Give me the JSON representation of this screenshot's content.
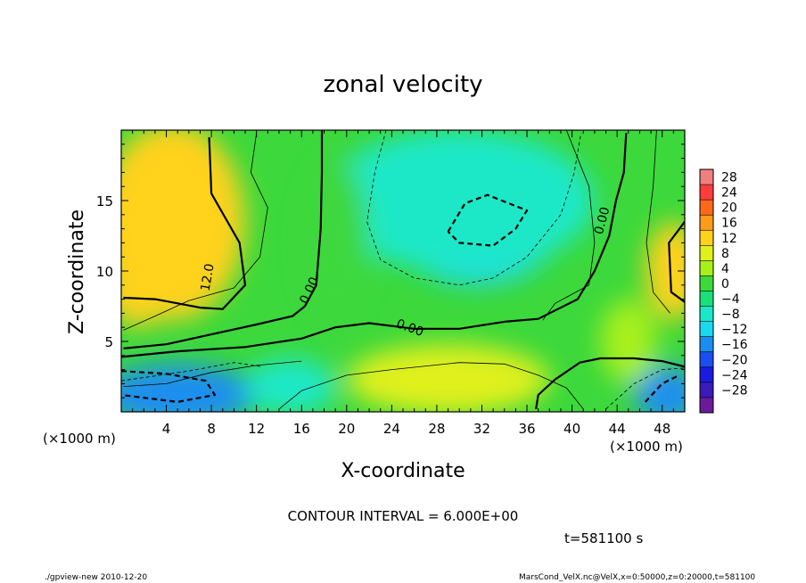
{
  "chart_data": {
    "type": "heatmap",
    "title": "zonal velocity",
    "xlabel": "X-coordinate",
    "ylabel": "Z-coordinate",
    "x_unit_left": "(×1000 m)",
    "x_unit_right": "(×1000 m)",
    "xlim": [
      0,
      50
    ],
    "ylim": [
      0,
      20
    ],
    "x_ticks": [
      4,
      8,
      12,
      16,
      20,
      24,
      28,
      32,
      36,
      40,
      44,
      48
    ],
    "y_ticks": [
      5,
      10,
      15
    ],
    "colorbar_levels": [
      28,
      24,
      20,
      16,
      12,
      8,
      4,
      0,
      -4,
      -8,
      -12,
      -16,
      -20,
      -24,
      -28
    ],
    "colorbar_colors": [
      "#f08080",
      "#ff3c3c",
      "#ff6a1a",
      "#ff9a1a",
      "#ffd21a",
      "#e0f01a",
      "#a8f01a",
      "#3cd83c",
      "#1ae07a",
      "#1ae8c8",
      "#1ad8f0",
      "#1a8ef0",
      "#1a4ef0",
      "#1a1ae0",
      "#3a1ab8",
      "#6a1a9a"
    ],
    "contour_interval": "CONTOUR INTERVAL = 6.000E+00",
    "contour_labels": [
      "12.0",
      "0.00",
      "0.00",
      "0.00"
    ],
    "time_label": "t=581100 s",
    "field_blobs": [
      {
        "x": 4.5,
        "z": 13.5,
        "rx": 6.5,
        "rz": 7,
        "value": 15
      },
      {
        "x": 1.5,
        "z": 9,
        "rx": 3,
        "rz": 3,
        "value": 12
      },
      {
        "x": 31.5,
        "z": 13.5,
        "rx": 7.5,
        "rz": 4.5,
        "value": -11
      },
      {
        "x": 30,
        "z": 15,
        "rx": 12,
        "rz": 5,
        "value": -7
      },
      {
        "x": 5,
        "z": 1.2,
        "rx": 7,
        "rz": 2.2,
        "value": -14
      },
      {
        "x": 15,
        "z": 1.8,
        "rx": 4,
        "rz": 2,
        "value": -6
      },
      {
        "x": 29,
        "z": 2.3,
        "rx": 9,
        "rz": 2.5,
        "value": 10
      },
      {
        "x": 49,
        "z": 10,
        "rx": 2.5,
        "rz": 3.5,
        "value": 13
      },
      {
        "x": 48.5,
        "z": 1.2,
        "rx": 3,
        "rz": 2,
        "value": -15
      },
      {
        "x": 45,
        "z": 5,
        "rx": 2.5,
        "rz": 3,
        "value": 6
      },
      {
        "x": 19,
        "z": 12,
        "rx": 3,
        "rz": 6,
        "value": 3
      }
    ],
    "contours": [
      {
        "style": "solid-bold",
        "points": [
          [
            0.2,
            8.1
          ],
          [
            3,
            8
          ],
          [
            7,
            7.4
          ],
          [
            9,
            7.3
          ],
          [
            11,
            9
          ],
          [
            10.5,
            12
          ],
          [
            8,
            15.5
          ],
          [
            7.8,
            19.5
          ]
        ]
      },
      {
        "style": "solid-bold",
        "points": [
          [
            17.8,
            20
          ],
          [
            17.8,
            17
          ],
          [
            17.7,
            13
          ],
          [
            17.3,
            9
          ],
          [
            16.3,
            7.5
          ],
          [
            15.2,
            6.8
          ],
          [
            12,
            6.2
          ],
          [
            8,
            5.5
          ],
          [
            4,
            4.8
          ],
          [
            0.2,
            4.5
          ]
        ]
      },
      {
        "style": "solid-bold",
        "points": [
          [
            0,
            3.9
          ],
          [
            5,
            4.3
          ],
          [
            11,
            4.6
          ],
          [
            16,
            5.2
          ],
          [
            19,
            6
          ],
          [
            22,
            6.3
          ],
          [
            26,
            5.9
          ],
          [
            30,
            5.9
          ],
          [
            34,
            6.4
          ],
          [
            37,
            6.6
          ],
          [
            40.5,
            8
          ],
          [
            42,
            10
          ],
          [
            43.3,
            12.5
          ],
          [
            43.9,
            15
          ],
          [
            44.6,
            17
          ],
          [
            44.8,
            19.8
          ]
        ]
      },
      {
        "style": "solid-bold",
        "points": [
          [
            36.8,
            0.2
          ],
          [
            37,
            1.2
          ],
          [
            38.5,
            2.3
          ],
          [
            40.7,
            3.5
          ],
          [
            42.5,
            3.8
          ],
          [
            45.5,
            3.8
          ],
          [
            48,
            3.6
          ],
          [
            50,
            3.2
          ]
        ]
      },
      {
        "style": "solid-bold",
        "points": [
          [
            50,
            7.8
          ],
          [
            48.8,
            8.5
          ],
          [
            48.6,
            12
          ],
          [
            50,
            13.5
          ]
        ]
      },
      {
        "style": "dashed-bold",
        "points": [
          [
            29,
            12.8
          ],
          [
            30.5,
            14.8
          ],
          [
            32.5,
            15.4
          ],
          [
            36,
            14.3
          ],
          [
            35,
            13
          ],
          [
            33,
            11.8
          ],
          [
            30,
            12
          ],
          [
            29,
            12.8
          ]
        ]
      },
      {
        "style": "dashed-bold",
        "points": [
          [
            0,
            2.9
          ],
          [
            4,
            2.7
          ],
          [
            7.5,
            2.2
          ],
          [
            8.3,
            1.2
          ],
          [
            5,
            0.7
          ],
          [
            0,
            1.2
          ]
        ]
      },
      {
        "style": "dashed-bold",
        "points": [
          [
            46.5,
            0.7
          ],
          [
            48,
            2
          ],
          [
            49.5,
            2.6
          ]
        ]
      },
      {
        "style": "thin",
        "points": [
          [
            0.2,
            5.8
          ],
          [
            3,
            6.8
          ],
          [
            6,
            7.9
          ],
          [
            10,
            8.8
          ],
          [
            12.3,
            11
          ],
          [
            13,
            14.5
          ],
          [
            11.5,
            17
          ],
          [
            12,
            19.8
          ]
        ]
      },
      {
        "style": "thin",
        "points": [
          [
            0.2,
            1.8
          ],
          [
            4,
            2
          ],
          [
            8,
            2.8
          ],
          [
            12,
            3.3
          ],
          [
            16,
            3.6
          ]
        ]
      },
      {
        "style": "thin",
        "points": [
          [
            14,
            0.2
          ],
          [
            16,
            1.5
          ],
          [
            20,
            2.6
          ],
          [
            24,
            3
          ],
          [
            30,
            3.5
          ],
          [
            34,
            3.4
          ],
          [
            37,
            2.6
          ],
          [
            39.5,
            1.7
          ],
          [
            41,
            0.2
          ]
        ]
      },
      {
        "style": "thin",
        "points": [
          [
            39.5,
            20
          ],
          [
            41.5,
            16
          ],
          [
            42,
            12
          ],
          [
            41.5,
            9
          ],
          [
            38.5,
            7.7
          ],
          [
            37.4,
            6.5
          ]
        ]
      },
      {
        "style": "thin",
        "points": [
          [
            47.5,
            20
          ],
          [
            47.2,
            16
          ],
          [
            46.6,
            12
          ],
          [
            47.2,
            8.5
          ],
          [
            48.7,
            7
          ]
        ]
      },
      {
        "style": "dashed-thin",
        "points": [
          [
            23.5,
            20
          ],
          [
            22.5,
            17
          ],
          [
            21.8,
            13.5
          ],
          [
            23,
            10.8
          ],
          [
            26,
            9.5
          ],
          [
            30,
            9
          ],
          [
            33,
            9.5
          ],
          [
            36,
            11
          ],
          [
            39,
            14
          ],
          [
            40.2,
            17
          ],
          [
            40.8,
            19.8
          ]
        ]
      },
      {
        "style": "dashed-thin",
        "points": [
          [
            0,
            2.2
          ],
          [
            6,
            2.9
          ],
          [
            10,
            3.5
          ],
          [
            12.5,
            3.2
          ]
        ]
      },
      {
        "style": "dashed-thin",
        "points": [
          [
            43,
            0.2
          ],
          [
            45.5,
            2
          ],
          [
            48,
            3
          ],
          [
            50,
            3.1
          ]
        ]
      }
    ]
  },
  "footer": {
    "left": "./gpview-new  2010-12-20",
    "right": "MarsCond_VelX.nc@VelX,x=0:50000,z=0:20000,t=581100"
  },
  "colors": {
    "frame": "#000000",
    "background": "#ffffff"
  }
}
